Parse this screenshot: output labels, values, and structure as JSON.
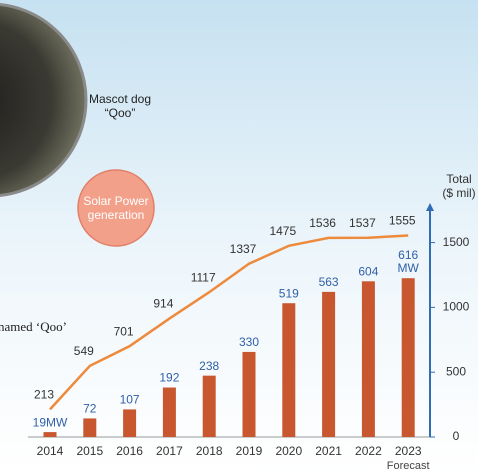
{
  "chart_data": {
    "type": "bar",
    "categories": [
      "2014",
      "2015",
      "2016",
      "2017",
      "2018",
      "2019",
      "2020",
      "2021",
      "2022",
      "2023"
    ],
    "x_note": "Forecast",
    "series": [
      {
        "type": "bar",
        "color": "#c8572f",
        "label_color": "#2f5fa8",
        "values": [
          19,
          72,
          107,
          192,
          238,
          330,
          519,
          563,
          604,
          616
        ],
        "value_labels": [
          "19MW",
          "72",
          "107",
          "192",
          "238",
          "330",
          "519",
          "563",
          "604",
          "616 MW"
        ]
      },
      {
        "type": "line",
        "axis": "y2",
        "color": "#ee8a3c",
        "label_color": "#333333",
        "values": [
          213,
          549,
          701,
          914,
          1117,
          1337,
          1475,
          1536,
          1537,
          1555
        ]
      }
    ],
    "ylim": [
      0,
      900
    ],
    "y2lim": [
      0,
      1790
    ],
    "y2ticks": [
      0,
      500,
      1000,
      1500
    ],
    "y2label": [
      "Total",
      "($ mil)"
    ],
    "mascot_label": [
      "Mascot dog",
      "“Qoo”"
    ],
    "badge": [
      "Solar Power",
      "generation"
    ],
    "side_text": "named ‘Qoo’"
  }
}
